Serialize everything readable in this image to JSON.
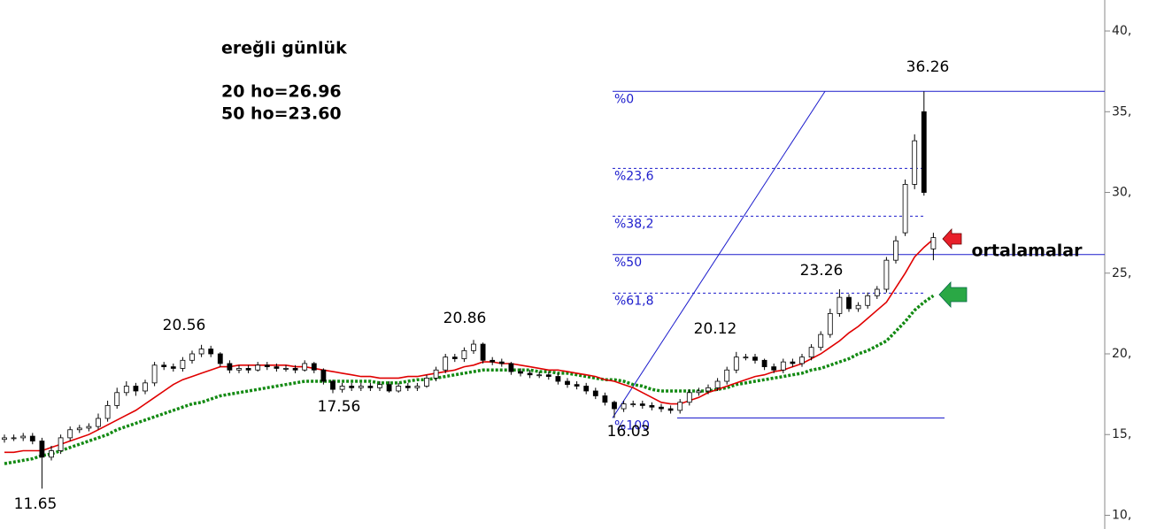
{
  "chart_data": {
    "type": "candlestick",
    "title": "ereğli günlük",
    "subtitle_lines": [
      "20 ho=26.96",
      "50 ho=23.60"
    ],
    "ylim": [
      9.15,
      41.92
    ],
    "yticks": [
      {
        "value": 40,
        "label": "40,"
      },
      {
        "value": 35,
        "label": "35,"
      },
      {
        "value": 30,
        "label": "30,"
      },
      {
        "value": 25,
        "label": "25,"
      },
      {
        "value": 20,
        "label": "20,"
      },
      {
        "value": 15,
        "label": "15,"
      },
      {
        "value": 10,
        "label": "10,"
      }
    ],
    "open": [
      14.7,
      14.8,
      14.8,
      14.9,
      14.6,
      13.6,
      14.0,
      14.8,
      15.3,
      15.4,
      15.5,
      16.0,
      16.8,
      17.6,
      18.0,
      17.7,
      18.2,
      19.3,
      19.2,
      19.1,
      19.6,
      20.0,
      20.3,
      20.0,
      19.4,
      19.0,
      19.1,
      19.0,
      19.3,
      19.2,
      19.1,
      19.1,
      19.0,
      19.4,
      19.0,
      18.3,
      17.8,
      18.0,
      17.9,
      18.0,
      17.9,
      18.1,
      17.7,
      18.0,
      17.9,
      18.0,
      18.5,
      19.0,
      19.8,
      19.7,
      20.2,
      20.6,
      19.6,
      19.5,
      19.4,
      18.9,
      18.8,
      18.7,
      18.7,
      18.6,
      18.3,
      18.1,
      18.0,
      17.7,
      17.4,
      17.0,
      16.6,
      16.9,
      16.9,
      16.8,
      16.7,
      16.6,
      16.5,
      17.0,
      17.6,
      17.7,
      17.9,
      18.3,
      19.0,
      19.8,
      19.8,
      19.6,
      19.2,
      19.0,
      19.5,
      19.4,
      19.8,
      20.4,
      21.2,
      22.5,
      23.5,
      22.8,
      23.0,
      23.6,
      24.0,
      25.8,
      27.5,
      30.5,
      35.0,
      26.5
    ],
    "high": [
      15.0,
      15.0,
      15.1,
      15.1,
      14.8,
      14.3,
      15.0,
      15.5,
      15.6,
      15.7,
      16.3,
      17.1,
      17.9,
      18.3,
      18.2,
      18.4,
      19.5,
      19.5,
      19.4,
      19.8,
      20.2,
      20.56,
      20.5,
      20.1,
      19.6,
      19.3,
      19.3,
      19.5,
      19.5,
      19.4,
      19.3,
      19.3,
      19.6,
      19.5,
      19.1,
      18.4,
      18.2,
      18.2,
      18.2,
      18.2,
      18.3,
      18.3,
      18.2,
      18.2,
      18.2,
      18.7,
      19.2,
      20.0,
      20.0,
      20.4,
      20.86,
      20.7,
      19.8,
      19.7,
      19.5,
      19.1,
      19.0,
      18.9,
      18.9,
      18.8,
      18.5,
      18.3,
      18.2,
      17.9,
      17.6,
      17.1,
      17.1,
      17.1,
      17.1,
      17.0,
      16.9,
      16.8,
      17.2,
      17.8,
      17.9,
      18.1,
      18.5,
      19.2,
      20.12,
      20.0,
      20.0,
      19.7,
      19.4,
      19.7,
      19.7,
      20.0,
      20.6,
      21.4,
      22.8,
      24.0,
      23.7,
      23.2,
      23.8,
      24.2,
      26.0,
      27.3,
      30.8,
      33.6,
      36.26,
      27.5
    ],
    "low": [
      14.5,
      14.6,
      14.6,
      14.4,
      11.65,
      13.4,
      13.8,
      14.6,
      15.1,
      15.2,
      15.3,
      15.8,
      16.6,
      17.4,
      17.4,
      17.5,
      18.0,
      19.0,
      18.9,
      18.9,
      19.4,
      19.8,
      19.8,
      19.2,
      18.8,
      18.8,
      18.8,
      18.9,
      19.0,
      18.9,
      18.9,
      18.8,
      18.9,
      18.8,
      18.1,
      17.56,
      17.6,
      17.7,
      17.7,
      17.7,
      17.7,
      17.6,
      17.6,
      17.7,
      17.7,
      17.9,
      18.3,
      18.8,
      19.5,
      19.5,
      20.0,
      19.4,
      19.3,
      19.2,
      18.7,
      18.6,
      18.5,
      18.5,
      18.4,
      18.1,
      17.9,
      17.8,
      17.5,
      17.2,
      16.8,
      16.03,
      16.4,
      16.7,
      16.6,
      16.5,
      16.4,
      16.3,
      16.3,
      16.8,
      17.4,
      17.5,
      17.7,
      18.1,
      18.8,
      19.6,
      19.4,
      19.0,
      18.8,
      18.8,
      19.2,
      19.2,
      19.6,
      20.2,
      21.0,
      22.3,
      22.6,
      22.6,
      22.8,
      23.4,
      23.8,
      25.6,
      27.3,
      30.2,
      29.8,
      25.8
    ],
    "close": [
      14.8,
      14.8,
      14.9,
      14.6,
      13.6,
      14.0,
      14.8,
      15.3,
      15.4,
      15.5,
      16.0,
      16.8,
      17.6,
      18.0,
      17.7,
      18.2,
      19.3,
      19.2,
      19.1,
      19.6,
      20.0,
      20.3,
      20.0,
      19.4,
      19.0,
      19.1,
      19.0,
      19.3,
      19.2,
      19.1,
      19.1,
      19.0,
      19.4,
      19.0,
      18.3,
      17.8,
      18.0,
      17.9,
      18.0,
      17.9,
      18.1,
      17.7,
      18.0,
      17.9,
      18.0,
      18.5,
      19.0,
      19.8,
      19.7,
      20.2,
      20.6,
      19.6,
      19.5,
      19.4,
      18.9,
      18.8,
      18.7,
      18.7,
      18.6,
      18.3,
      18.1,
      18.0,
      17.7,
      17.4,
      17.0,
      16.6,
      16.9,
      16.9,
      16.8,
      16.7,
      16.6,
      16.5,
      17.0,
      17.6,
      17.7,
      17.9,
      18.3,
      19.0,
      19.8,
      19.8,
      19.6,
      19.2,
      19.0,
      19.5,
      19.4,
      19.8,
      20.4,
      21.2,
      22.5,
      23.5,
      22.8,
      23.0,
      23.6,
      24.0,
      25.8,
      27.0,
      30.5,
      33.2,
      30.0,
      27.2
    ],
    "series": [
      {
        "color": "#e00000",
        "values": [
          13.9,
          13.9,
          14.0,
          14.0,
          14.0,
          14.2,
          14.4,
          14.6,
          14.8,
          15.0,
          15.3,
          15.6,
          15.9,
          16.2,
          16.5,
          16.9,
          17.3,
          17.7,
          18.1,
          18.4,
          18.6,
          18.8,
          19.0,
          19.2,
          19.2,
          19.3,
          19.3,
          19.3,
          19.3,
          19.3,
          19.3,
          19.2,
          19.2,
          19.1,
          19.0,
          18.9,
          18.8,
          18.7,
          18.6,
          18.6,
          18.5,
          18.5,
          18.5,
          18.6,
          18.6,
          18.7,
          18.8,
          18.9,
          19.0,
          19.2,
          19.3,
          19.5,
          19.5,
          19.4,
          19.4,
          19.3,
          19.2,
          19.1,
          19.0,
          19.0,
          18.9,
          18.8,
          18.7,
          18.6,
          18.4,
          18.3,
          18.1,
          17.9,
          17.6,
          17.3,
          17.0,
          16.9,
          16.9,
          17.1,
          17.3,
          17.6,
          17.8,
          18.0,
          18.2,
          18.4,
          18.6,
          18.7,
          18.9,
          19.0,
          19.2,
          19.4,
          19.7,
          20.0,
          20.4,
          20.8,
          21.3,
          21.7,
          22.2,
          22.7,
          23.2,
          24.1,
          25.0,
          26.0,
          26.6,
          27.1
        ]
      },
      {
        "color": "#138a13",
        "values": [
          13.2,
          13.3,
          13.4,
          13.5,
          13.7,
          13.8,
          14.0,
          14.2,
          14.4,
          14.6,
          14.8,
          15.0,
          15.3,
          15.5,
          15.7,
          15.9,
          16.1,
          16.3,
          16.5,
          16.7,
          16.9,
          17.0,
          17.2,
          17.4,
          17.5,
          17.6,
          17.7,
          17.8,
          17.9,
          18.0,
          18.1,
          18.2,
          18.3,
          18.3,
          18.3,
          18.3,
          18.3,
          18.3,
          18.3,
          18.3,
          18.2,
          18.2,
          18.2,
          18.3,
          18.4,
          18.4,
          18.5,
          18.6,
          18.7,
          18.8,
          18.9,
          19.0,
          19.0,
          19.0,
          19.0,
          19.0,
          19.0,
          18.9,
          18.9,
          18.8,
          18.8,
          18.7,
          18.6,
          18.5,
          18.4,
          18.4,
          18.3,
          18.1,
          18.0,
          17.8,
          17.7,
          17.7,
          17.7,
          17.7,
          17.7,
          17.7,
          17.8,
          17.9,
          18.1,
          18.2,
          18.3,
          18.4,
          18.5,
          18.6,
          18.7,
          18.8,
          19.0,
          19.1,
          19.3,
          19.5,
          19.7,
          20.0,
          20.2,
          20.5,
          20.8,
          21.4,
          22.0,
          22.7,
          23.2,
          23.6
        ]
      }
    ],
    "fib_levels": [
      {
        "label": "%0",
        "value": 36.26,
        "dashed": false
      },
      {
        "label": "%23,6",
        "value": 31.49,
        "dashed": true
      },
      {
        "label": "%38,2",
        "value": 28.53,
        "dashed": true
      },
      {
        "label": "%50",
        "value": 26.15,
        "dashed": false
      },
      {
        "label": "%61,8",
        "value": 23.76,
        "dashed": true
      },
      {
        "label": "%100",
        "value": 16.03,
        "dashed": false
      }
    ],
    "annotations": [
      "36.26",
      "23.26",
      "20.12",
      "20.86",
      "20.56",
      "17.56",
      "16.03",
      "11.65",
      "ortalamalar"
    ]
  }
}
